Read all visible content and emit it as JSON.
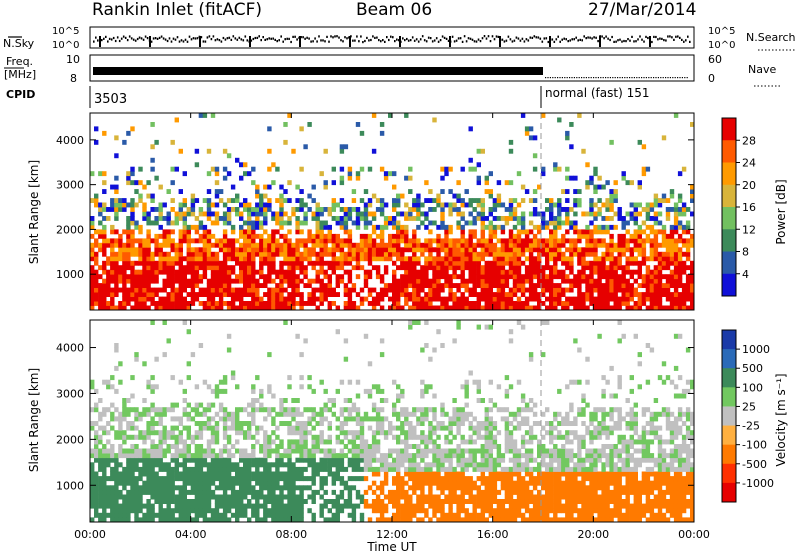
{
  "header": {
    "site": "Rankin Inlet (fitACF)",
    "beam": "Beam 06",
    "date": "27/Mar/2014"
  },
  "top_panels": {
    "nsky_label": "N.Sky",
    "nsky_ticks": [
      "10^5",
      "10^0"
    ],
    "nsearch_label": "N.Search",
    "freq_label": "Freq.",
    "freq_unit": "[MHz]",
    "freq_ticks": [
      "10",
      "8"
    ],
    "nave_label": "Nave",
    "nave_ticks": [
      "60",
      "0"
    ],
    "cpid_label": "CPID",
    "cpid_start": "3503",
    "cpid_mode": "normal (fast) 151"
  },
  "chart_data": [
    {
      "type": "heatmap",
      "name": "power",
      "ylabel": "Slant Range [km]",
      "ylim": [
        200,
        4600
      ],
      "yticks": [
        "1000",
        "2000",
        "3000",
        "4000"
      ],
      "colorbar": {
        "label": "Power [dB]",
        "ticks": [
          "28",
          "24",
          "20",
          "16",
          "12",
          "8",
          "4"
        ],
        "colors": [
          "#e60000",
          "#ff5a00",
          "#ff9a00",
          "#d8b43a",
          "#72c060",
          "#3c8a5a",
          "#2a5aa8",
          "#1010d8"
        ]
      }
    },
    {
      "type": "heatmap",
      "name": "velocity",
      "ylabel": "Slant Range [km]",
      "ylim": [
        200,
        4600
      ],
      "yticks": [
        "1000",
        "2000",
        "3000",
        "4000"
      ],
      "colorbar": {
        "label": "Velocity [m s⁻¹]",
        "ticks": [
          "1000",
          "500",
          "100",
          "25",
          "-25",
          "-100",
          "-500",
          "-1000"
        ],
        "colors": [
          "#1a3aa8",
          "#2a6ab8",
          "#3c8a5a",
          "#72c860",
          "#c0c0c0",
          "#ffb040",
          "#ff7a00",
          "#ff3000",
          "#e60000"
        ]
      }
    }
  ],
  "time_axis": {
    "label": "Time UT",
    "ticks": [
      "00:00",
      "04:00",
      "08:00",
      "12:00",
      "16:00",
      "20:00",
      "00:00"
    ]
  }
}
